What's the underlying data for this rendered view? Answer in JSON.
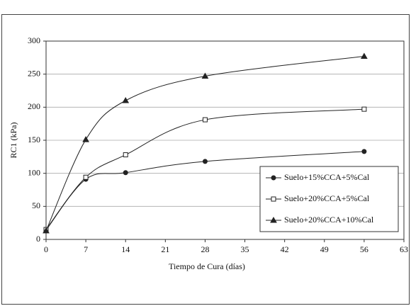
{
  "chart_data": {
    "type": "line",
    "x_label": "Tiempo de Cura (días)",
    "y_label": "RC1 (kPa)",
    "x": [
      0,
      7,
      14,
      28,
      56
    ],
    "series": [
      {
        "name": "Suelo+15%CCA+5%Cal",
        "color": "#222222",
        "marker": "circle",
        "values": [
          14,
          91,
          101,
          118,
          133
        ]
      },
      {
        "name": "Suelo+20%CCA+5%Cal",
        "color": "#222222",
        "marker": "square",
        "values": [
          15,
          94,
          128,
          181,
          197
        ]
      },
      {
        "name": "Suelo+20%CCA+10%Cal",
        "color": "#222222",
        "marker": "triangle",
        "values": [
          13,
          151,
          210,
          247,
          277
        ]
      }
    ],
    "xlim": [
      0,
      63
    ],
    "xticks": [
      0,
      7,
      14,
      21,
      28,
      35,
      42,
      49,
      56,
      63
    ],
    "ylim": [
      0,
      300
    ],
    "yticks": [
      0,
      50,
      100,
      150,
      200,
      250,
      300
    ],
    "grid": true,
    "legend": "lower right"
  }
}
